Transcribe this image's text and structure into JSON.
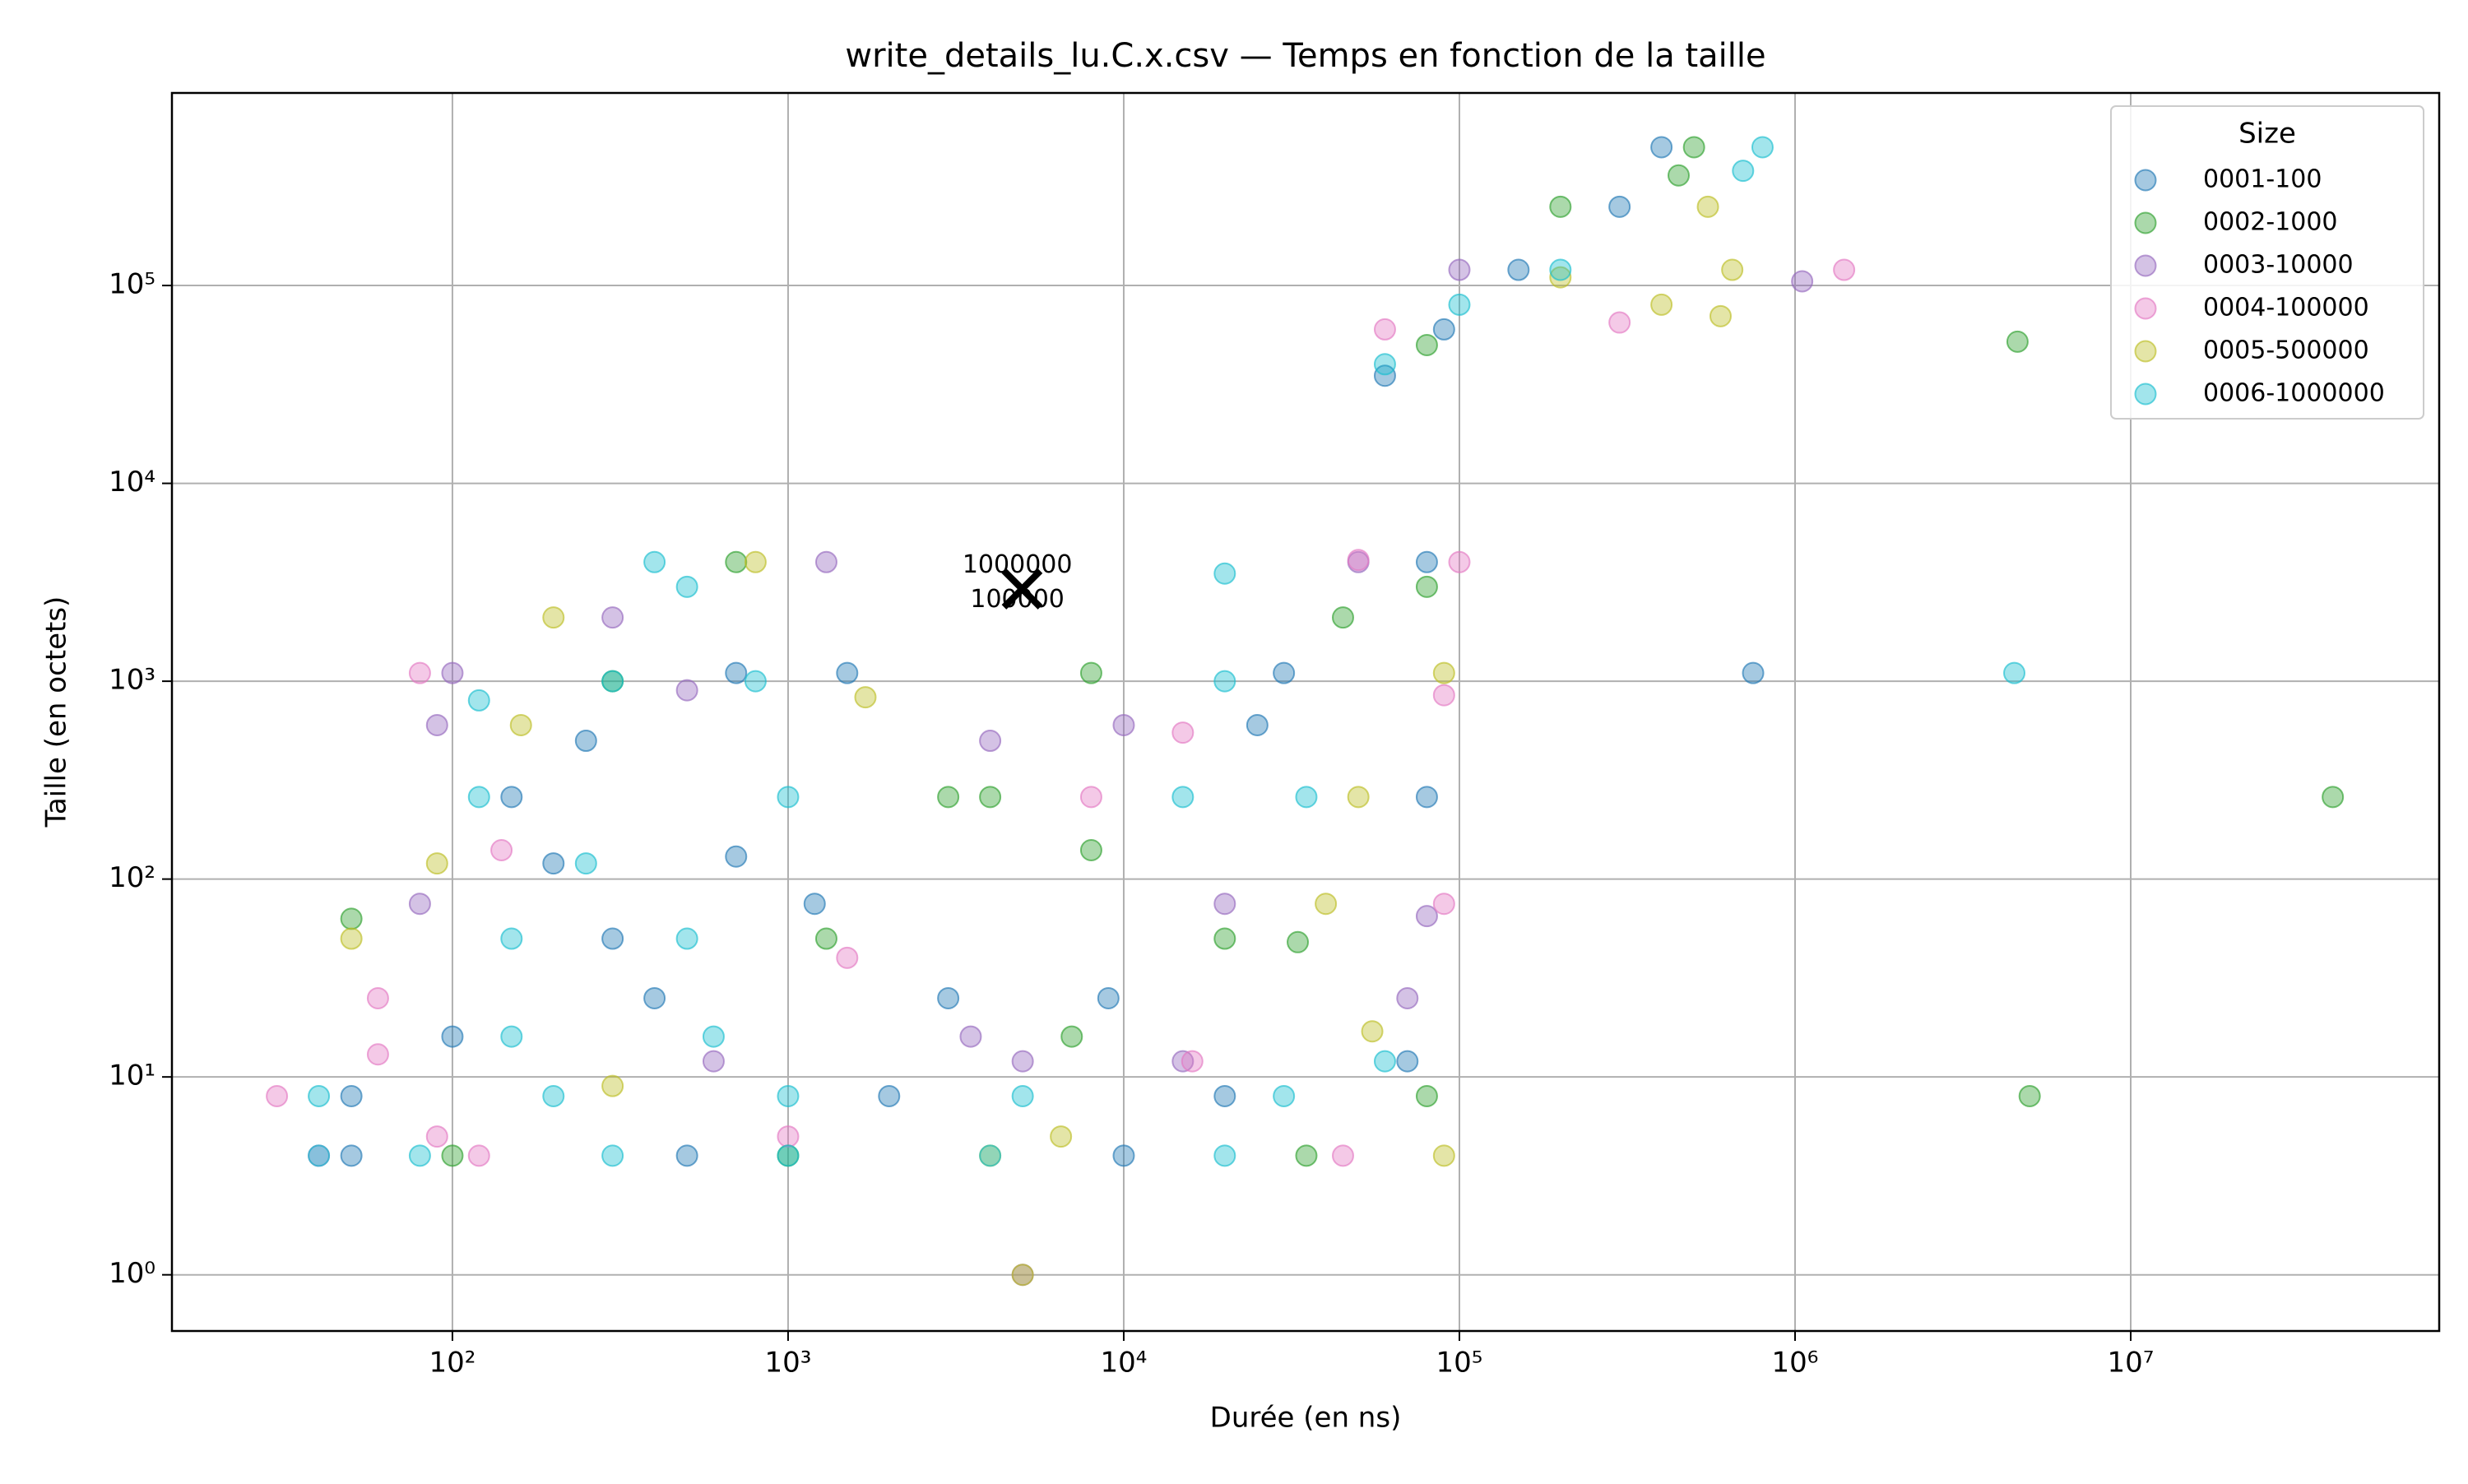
{
  "chart_data": {
    "type": "scatter",
    "title": "write_details_lu.C.x.csv — Temps en fonction de la taille",
    "x_label": "Durée (en ns)",
    "y_label": "Taille (en octets)",
    "xscale": "log",
    "yscale": "log",
    "xlim": [
      14.6,
      83000000
    ],
    "ylim": [
      0.52,
      940000
    ],
    "xticks": [
      {
        "value": 100,
        "label": "10²"
      },
      {
        "value": 1000,
        "label": "10³"
      },
      {
        "value": 10000,
        "label": "10⁴"
      },
      {
        "value": 100000,
        "label": "10⁵"
      },
      {
        "value": 1000000,
        "label": "10⁶"
      },
      {
        "value": 10000000,
        "label": "10⁷"
      }
    ],
    "yticks": [
      {
        "value": 1,
        "label": "10⁰"
      },
      {
        "value": 10,
        "label": "10¹"
      },
      {
        "value": 100,
        "label": "10²"
      },
      {
        "value": 1000,
        "label": "10³"
      },
      {
        "value": 10000,
        "label": "10⁴"
      },
      {
        "value": 100000,
        "label": "10⁵"
      }
    ],
    "grid": true,
    "legend_title": "Size",
    "legend_position": "upper right",
    "opacity": 0.4,
    "series": [
      {
        "name": "0001-100",
        "color": "#1f77b4",
        "x": [
          50,
          500,
          10000,
          50,
          2000,
          20000,
          100,
          400,
          1200,
          300,
          700,
          200,
          150,
          80000,
          250,
          700,
          750000,
          80000,
          30000,
          1500,
          25000,
          60000,
          90000,
          150000,
          300000,
          400000,
          3000,
          9000,
          70000
        ],
        "y": [
          4,
          4,
          4,
          8,
          8,
          8,
          16,
          25,
          75,
          50,
          130,
          120,
          260,
          260,
          500,
          1100,
          1100,
          4000,
          1100,
          1100,
          600,
          35000,
          60000,
          120000,
          250000,
          500000,
          25,
          25,
          12
        ]
      },
      {
        "name": "0002-1000",
        "color": "#2ca02c",
        "x": [
          50,
          100,
          1000,
          35000,
          80000,
          5000000,
          7000,
          4000,
          3000,
          8000,
          33000,
          20000,
          45000,
          4600000,
          40000000,
          700,
          300,
          1300,
          80000,
          200000,
          450000,
          500000,
          8000,
          80000
        ],
        "y": [
          63,
          4,
          4,
          4,
          8,
          8,
          16,
          260,
          260,
          140,
          48,
          50,
          2100,
          52000,
          260,
          4000,
          1000,
          50,
          50000,
          250000,
          360000,
          500000,
          1100,
          3000
        ]
      },
      {
        "name": "0003-10000",
        "color": "#9467bd",
        "x": [
          100,
          90,
          80,
          1300,
          10000,
          4000,
          3500,
          70000,
          80000,
          1050000,
          5000,
          100000,
          300,
          500,
          20000,
          40,
          600,
          5000,
          15000,
          50000
        ],
        "y": [
          1100,
          600,
          75,
          4000,
          600,
          500,
          16,
          25,
          65,
          105000,
          1,
          120000,
          2100,
          900,
          75,
          4,
          12,
          12,
          12,
          4000
        ]
      },
      {
        "name": "0004-100000",
        "color": "#e377c2",
        "x": [
          30,
          60,
          60,
          90,
          80,
          120,
          140,
          1500,
          15000,
          45000,
          90000,
          90000,
          100000,
          1400000,
          300000,
          60000,
          8000,
          50000,
          1000,
          16000
        ],
        "y": [
          8,
          25,
          13,
          5,
          1100,
          4,
          140,
          40,
          550,
          4,
          75,
          850,
          4000,
          120000,
          65000,
          60000,
          260,
          4100,
          5,
          12
        ]
      },
      {
        "name": "0005-500000",
        "color": "#bcbd22",
        "x": [
          50,
          90,
          200,
          160,
          1700,
          4000,
          6500,
          40000,
          90000,
          90000,
          55000,
          600000,
          650000,
          400000,
          550000,
          5000,
          50000,
          800,
          200000,
          300
        ],
        "y": [
          50,
          120,
          2100,
          600,
          830,
          4,
          5,
          75,
          4,
          1100,
          17,
          70000,
          120000,
          80000,
          250000,
          1,
          260,
          4000,
          110000,
          9
        ]
      },
      {
        "name": "0006-1000000",
        "color": "#17becf",
        "x": [
          40,
          80,
          300,
          1000,
          4000,
          20000,
          40,
          200,
          1000,
          5000,
          30000,
          150,
          600,
          150,
          500,
          250,
          120,
          1000,
          15000,
          35000,
          300,
          800,
          20000,
          4500000,
          500,
          20000,
          400,
          60000,
          100000,
          200000,
          700000,
          800000,
          60000,
          120
        ],
        "y": [
          4,
          4,
          4,
          4,
          4,
          4,
          8,
          8,
          8,
          8,
          8,
          16,
          16,
          50,
          50,
          120,
          260,
          260,
          260,
          260,
          1000,
          1000,
          1000,
          1100,
          3000,
          3500,
          4000,
          40000,
          80000,
          120000,
          380000,
          500000,
          12,
          800
        ]
      }
    ],
    "markers": [
      {
        "x": 4980,
        "y": 2925,
        "symbol": "x",
        "color": "#000000"
      }
    ],
    "annotations": [
      {
        "text": "1000000",
        "x": 4820,
        "y": 3850
      },
      {
        "text": "100000",
        "x": 4820,
        "y": 2570
      }
    ]
  }
}
